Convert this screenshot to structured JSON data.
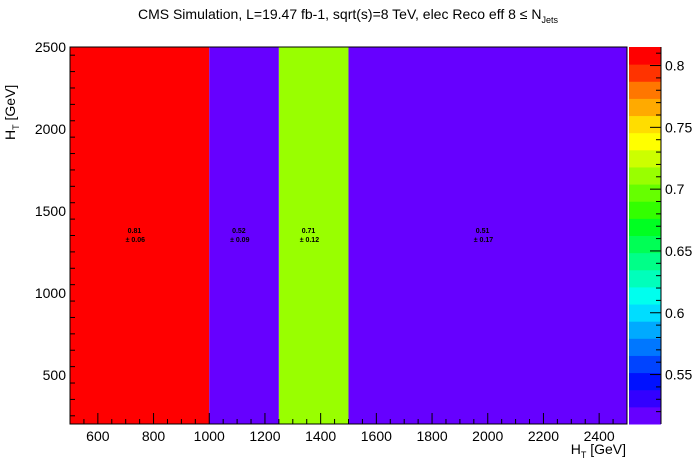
{
  "title": {
    "main": "CMS Simulation, L=19.47 fb-1, sqrt(s)=8 TeV, elec Reco eff 8 ≤ N",
    "sub": "Jets"
  },
  "xaxis": {
    "label": "H",
    "label_sub": "T",
    "label_unit": " [GeV]"
  },
  "yaxis": {
    "label": "H",
    "label_sub": "T",
    "label_unit": " [GeV]"
  },
  "chart_data": {
    "type": "heatmap",
    "title": "CMS Simulation, L=19.47 fb-1, sqrt(s)=8 TeV, elec Reco eff 8 ≤ N_Jets",
    "xlabel": "H_T [GeV]",
    "ylabel": "H_T [GeV]",
    "xlim": [
      500,
      2500
    ],
    "ylim": [
      200,
      2500
    ],
    "xticks": [
      600,
      800,
      1000,
      1200,
      1400,
      1600,
      1800,
      2000,
      2200,
      2400
    ],
    "yticks": [
      500,
      1000,
      1500,
      2000,
      2500
    ],
    "zlim": [
      0.51,
      0.815
    ],
    "zticks": [
      0.55,
      0.6,
      0.65,
      0.7,
      0.75,
      0.8
    ],
    "cells": [
      {
        "x0": 500,
        "x1": 1000,
        "y0": 200,
        "y1": 2500,
        "value": 0.81,
        "value_label": "0.81",
        "error_label": "±  0.06"
      },
      {
        "x0": 1000,
        "x1": 1250,
        "y0": 200,
        "y1": 2500,
        "value": 0.52,
        "value_label": "0.52",
        "error_label": "±  0.09"
      },
      {
        "x0": 1250,
        "x1": 1500,
        "y0": 200,
        "y1": 2500,
        "value": 0.71,
        "value_label": "0.71",
        "error_label": "±  0.12"
      },
      {
        "x0": 1500,
        "x1": 2500,
        "y0": 200,
        "y1": 2500,
        "value": 0.51,
        "value_label": "0.51",
        "error_label": "±  0.17"
      }
    ],
    "palette": [
      "#6600ff",
      "#3300ff",
      "#0011ff",
      "#0044ff",
      "#0077ff",
      "#00aaff",
      "#00ddff",
      "#00ffee",
      "#00ffbb",
      "#00ff88",
      "#00ff55",
      "#00ff22",
      "#33ff00",
      "#66ff00",
      "#99ff00",
      "#ccff00",
      "#ffff00",
      "#ffdd00",
      "#ffaa00",
      "#ff7700",
      "#ff3300",
      "#ff0000"
    ]
  }
}
